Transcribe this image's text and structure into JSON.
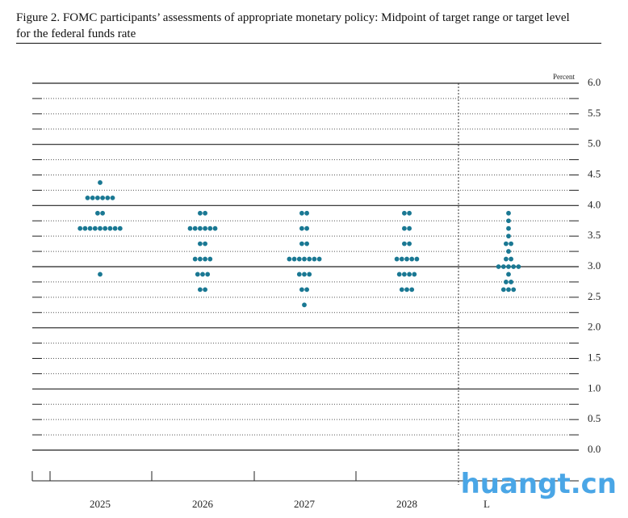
{
  "chart_data": {
    "type": "dot",
    "title": "Figure 2. FOMC participants’ assessments of appropriate monetary policy: Midpoint of target range or target level for the federal funds rate",
    "ylabel": "Percent",
    "ylim": [
      0,
      6
    ],
    "yticks": [
      {
        "value": 0,
        "label": "0.0"
      },
      {
        "value": 0.5,
        "label": "0.5"
      },
      {
        "value": 1,
        "label": "1.0"
      },
      {
        "value": 1.5,
        "label": "1.5"
      },
      {
        "value": 2,
        "label": "2.0"
      },
      {
        "value": 2.5,
        "label": "2.5"
      },
      {
        "value": 3,
        "label": "3.0"
      },
      {
        "value": 3.5,
        "label": "3.5"
      },
      {
        "value": 4,
        "label": "4.0"
      },
      {
        "value": 4.5,
        "label": "4.5"
      },
      {
        "value": 5,
        "label": "5.0"
      },
      {
        "value": 5.5,
        "label": "5.5"
      },
      {
        "value": 6,
        "label": "6.0"
      }
    ],
    "minor_yticks": [
      0.25,
      0.75,
      1.25,
      1.75,
      2.25,
      2.75,
      3.25,
      3.75,
      4.25,
      4.75,
      5.25,
      5.75
    ],
    "color": "#1a7893",
    "categories": [
      "2025",
      "2026",
      "2027",
      "2028",
      "L"
    ],
    "dots": [
      [
        {
          "value": 4.375,
          "count": 1
        },
        {
          "value": 4.125,
          "count": 6
        },
        {
          "value": 3.875,
          "count": 2
        },
        {
          "value": 3.625,
          "count": 9
        },
        {
          "value": 2.875,
          "count": 1
        }
      ],
      [
        {
          "value": 3.875,
          "count": 2
        },
        {
          "value": 3.625,
          "count": 6
        },
        {
          "value": 3.375,
          "count": 2
        },
        {
          "value": 3.125,
          "count": 4
        },
        {
          "value": 2.875,
          "count": 3
        },
        {
          "value": 2.625,
          "count": 2
        }
      ],
      [
        {
          "value": 3.875,
          "count": 2
        },
        {
          "value": 3.625,
          "count": 2
        },
        {
          "value": 3.375,
          "count": 2
        },
        {
          "value": 3.125,
          "count": 7
        },
        {
          "value": 2.875,
          "count": 3
        },
        {
          "value": 2.625,
          "count": 2
        },
        {
          "value": 2.375,
          "count": 1
        }
      ],
      [
        {
          "value": 3.875,
          "count": 2
        },
        {
          "value": 3.625,
          "count": 2
        },
        {
          "value": 3.375,
          "count": 2
        },
        {
          "value": 3.125,
          "count": 5
        },
        {
          "value": 2.875,
          "count": 4
        },
        {
          "value": 2.625,
          "count": 3
        }
      ],
      [
        {
          "value": 3.875,
          "count": 1
        },
        {
          "value": 3.75,
          "count": 1
        },
        {
          "value": 3.625,
          "count": 1
        },
        {
          "value": 3.5,
          "count": 1
        },
        {
          "value": 3.375,
          "count": 2
        },
        {
          "value": 3.25,
          "count": 1
        },
        {
          "value": 3.125,
          "count": 2
        },
        {
          "value": 3,
          "count": 5
        },
        {
          "value": 2.875,
          "count": 1
        },
        {
          "value": 2.75,
          "count": 2
        },
        {
          "value": 2.625,
          "count": 3
        }
      ]
    ],
    "watermark": "huangt.cn"
  }
}
